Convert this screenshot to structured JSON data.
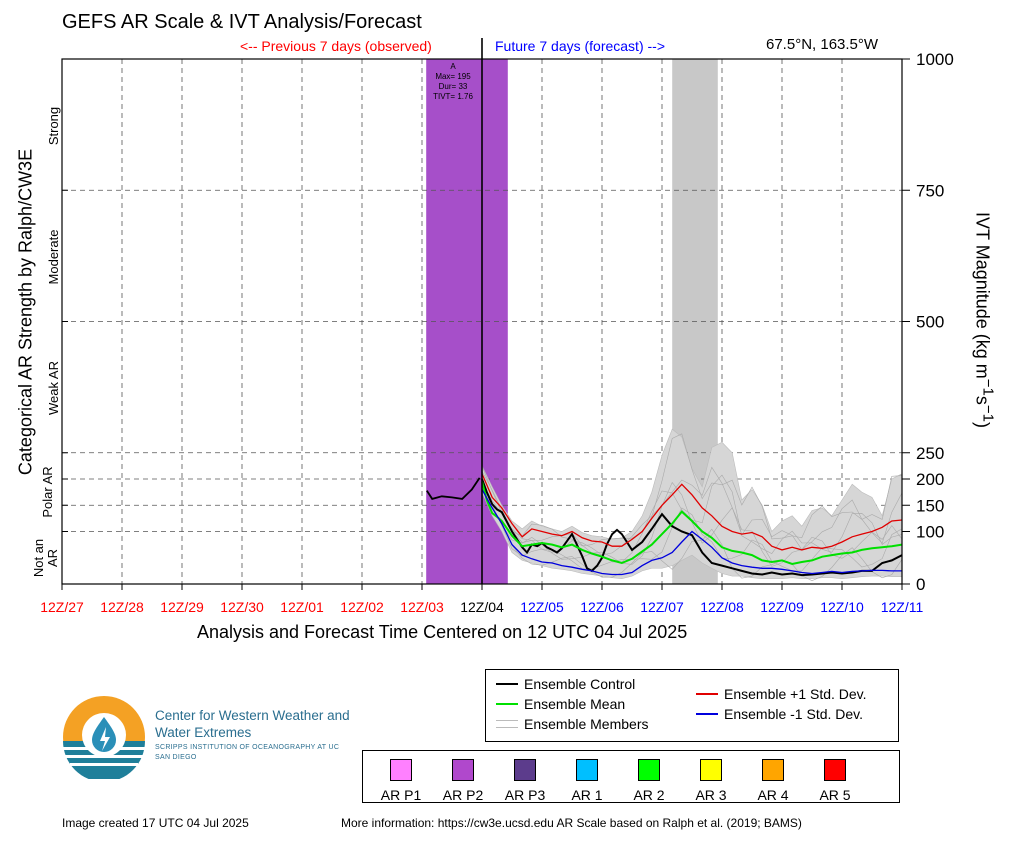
{
  "header": {
    "title": "GEFS AR Scale & IVT Analysis/Forecast",
    "previous_label": "<-- Previous 7 days (observed)",
    "future_label": "Future 7 days (forecast) -->",
    "location": "67.5°N, 163.5°W"
  },
  "axes": {
    "x_title": "Analysis and Forecast Time Centered on 12 UTC 04 Jul 2025",
    "left_title": "Categorical AR Strength by Ralph/CW3E",
    "right_title_main": "IVT Magnitude (kg m",
    "right_title_sup1": "−1",
    "right_title_mid": "s",
    "right_title_sup2": "−1",
    "right_title_end": ")",
    "categories": [
      "Not an AR",
      "Polar AR",
      "Weak AR",
      "Moderate",
      "Strong"
    ]
  },
  "colors": {
    "observed": "#ff0000",
    "forecast": "#0000ff",
    "control": "#000000",
    "mean": "#00e000",
    "plus_sd": "#e00000",
    "minus_sd": "#0000dd",
    "members": "#bbbbbb",
    "ar_p2_band": "#a64fc9",
    "grey_band": "#c8c8c8"
  },
  "chart_data": {
    "type": "line",
    "title": "GEFS AR Scale & IVT Analysis/Forecast",
    "xlabel": "Analysis and Forecast Time Centered on 12 UTC 04 Jul 2025",
    "ylabel": "IVT Magnitude (kg m-1 s-1)",
    "ylim": [
      0,
      1000
    ],
    "y_ticks": [
      0,
      100,
      150,
      200,
      250,
      500,
      750,
      1000
    ],
    "x_ticks": [
      {
        "label": "12Z/27",
        "period": "observed"
      },
      {
        "label": "12Z/28",
        "period": "observed"
      },
      {
        "label": "12Z/29",
        "period": "observed"
      },
      {
        "label": "12Z/30",
        "period": "observed"
      },
      {
        "label": "12Z/01",
        "period": "observed"
      },
      {
        "label": "12Z/02",
        "period": "observed"
      },
      {
        "label": "12Z/03",
        "period": "observed"
      },
      {
        "label": "12Z/04",
        "period": "analysis"
      },
      {
        "label": "12Z/05",
        "period": "forecast"
      },
      {
        "label": "12Z/06",
        "period": "forecast"
      },
      {
        "label": "12Z/07",
        "period": "forecast"
      },
      {
        "label": "12Z/08",
        "period": "forecast"
      },
      {
        "label": "12Z/09",
        "period": "forecast"
      },
      {
        "label": "12Z/10",
        "period": "forecast"
      },
      {
        "label": "12Z/11",
        "period": "forecast"
      }
    ],
    "x_unit": "days relative to 12Z/04",
    "xlim": [
      -7,
      7
    ],
    "observed": {
      "x": [
        -0.92,
        -0.83,
        -0.67,
        -0.5,
        -0.33,
        -0.17,
        -0.04
      ],
      "y": [
        178,
        162,
        167,
        165,
        162,
        180,
        202
      ]
    },
    "series": [
      {
        "name": "Ensemble Control",
        "x": [
          0,
          0.08,
          0.17,
          0.25,
          0.33,
          0.5,
          0.67,
          0.75,
          0.83,
          0.92,
          1.0,
          1.08,
          1.17,
          1.25,
          1.33,
          1.5,
          1.67,
          1.75,
          1.83,
          1.92,
          2.0,
          2.08,
          2.17,
          2.25,
          2.33,
          2.5,
          2.67,
          2.83,
          3.0,
          3.17,
          3.33,
          3.5,
          3.67,
          3.83,
          4.0,
          4.17,
          4.33,
          4.5,
          4.67,
          4.83,
          5.0,
          5.17,
          5.33,
          5.5,
          5.67,
          5.83,
          6.0,
          6.17,
          6.33,
          6.5,
          6.67,
          6.83,
          7.0
        ],
        "y": [
          200,
          175,
          152,
          142,
          137,
          100,
          70,
          60,
          75,
          72,
          78,
          70,
          65,
          60,
          68,
          95,
          53,
          30,
          25,
          35,
          50,
          75,
          95,
          103,
          95,
          65,
          80,
          105,
          133,
          110,
          100,
          93,
          60,
          40,
          35,
          30,
          25,
          20,
          18,
          22,
          18,
          20,
          17,
          18,
          20,
          22,
          20,
          22,
          25,
          25,
          40,
          45,
          55
        ]
      },
      {
        "name": "Ensemble Mean",
        "x": [
          0,
          0.08,
          0.17,
          0.25,
          0.33,
          0.5,
          0.67,
          0.83,
          1.0,
          1.17,
          1.33,
          1.5,
          1.67,
          1.83,
          2.0,
          2.17,
          2.33,
          2.5,
          2.67,
          2.83,
          3.0,
          3.17,
          3.33,
          3.5,
          3.67,
          3.83,
          4.0,
          4.17,
          4.33,
          4.5,
          4.67,
          4.83,
          5.0,
          5.17,
          5.33,
          5.5,
          5.67,
          5.83,
          6.0,
          6.17,
          6.33,
          6.5,
          6.67,
          6.83,
          7.0
        ],
        "y": [
          195,
          160,
          135,
          128,
          120,
          92,
          72,
          75,
          78,
          75,
          70,
          75,
          65,
          58,
          52,
          45,
          40,
          48,
          62,
          75,
          95,
          115,
          138,
          120,
          100,
          88,
          70,
          63,
          60,
          55,
          45,
          42,
          45,
          38,
          42,
          45,
          52,
          55,
          58,
          60,
          65,
          68,
          70,
          72,
          75
        ]
      },
      {
        "name": "Ensemble +1 Std. Dev.",
        "x": [
          0,
          0.17,
          0.33,
          0.5,
          0.67,
          0.83,
          1.0,
          1.17,
          1.33,
          1.5,
          1.67,
          1.83,
          2.0,
          2.17,
          2.33,
          2.5,
          2.67,
          2.83,
          3.0,
          3.17,
          3.33,
          3.5,
          3.67,
          3.83,
          4.0,
          4.17,
          4.33,
          4.5,
          4.67,
          4.83,
          5.0,
          5.17,
          5.33,
          5.5,
          5.67,
          5.83,
          6.0,
          6.17,
          6.33,
          6.5,
          6.67,
          6.83,
          7.0
        ],
        "y": [
          210,
          165,
          145,
          115,
          90,
          105,
          100,
          95,
          92,
          100,
          88,
          82,
          80,
          72,
          72,
          85,
          100,
          125,
          150,
          170,
          190,
          170,
          145,
          130,
          110,
          100,
          95,
          98,
          90,
          72,
          65,
          70,
          65,
          70,
          68,
          72,
          80,
          90,
          95,
          100,
          108,
          120,
          122
        ]
      },
      {
        "name": "Ensemble -1 Std. Dev.",
        "x": [
          0,
          0.17,
          0.33,
          0.5,
          0.67,
          0.83,
          1.0,
          1.17,
          1.33,
          1.5,
          1.67,
          1.83,
          2.0,
          2.17,
          2.33,
          2.5,
          2.67,
          2.83,
          3.0,
          3.17,
          3.33,
          3.5,
          3.67,
          3.83,
          4.0,
          4.17,
          4.33,
          4.5,
          4.67,
          4.83,
          5.0,
          5.17,
          5.33,
          5.5,
          5.67,
          5.83,
          6.0,
          6.17,
          6.33,
          6.5,
          6.67,
          6.83,
          7.0
        ],
        "y": [
          180,
          145,
          115,
          75,
          55,
          48,
          42,
          40,
          35,
          32,
          28,
          25,
          20,
          18,
          18,
          22,
          35,
          45,
          50,
          60,
          80,
          100,
          85,
          70,
          50,
          40,
          35,
          32,
          30,
          30,
          28,
          25,
          22,
          20,
          22,
          24,
          22,
          24,
          25,
          26,
          26,
          25,
          25
        ]
      }
    ],
    "members_envelope": {
      "x": [
        0,
        0.17,
        0.33,
        0.5,
        0.67,
        0.83,
        1.0,
        1.17,
        1.33,
        1.5,
        1.67,
        1.83,
        2.0,
        2.17,
        2.33,
        2.5,
        2.67,
        2.83,
        3.0,
        3.17,
        3.33,
        3.5,
        3.67,
        3.83,
        4.0,
        4.17,
        4.33,
        4.5,
        4.67,
        4.83,
        5.0,
        5.17,
        5.33,
        5.5,
        5.67,
        5.83,
        6.0,
        6.17,
        6.33,
        6.5,
        6.67,
        6.83,
        7.0
      ],
      "low": [
        175,
        130,
        100,
        60,
        45,
        40,
        35,
        30,
        28,
        25,
        20,
        18,
        15,
        12,
        10,
        15,
        25,
        30,
        30,
        35,
        45,
        55,
        40,
        30,
        20,
        15,
        15,
        12,
        10,
        10,
        10,
        12,
        10,
        10,
        12,
        12,
        10,
        12,
        14,
        15,
        15,
        14,
        14
      ],
      "high": [
        225,
        185,
        150,
        120,
        105,
        120,
        110,
        105,
        100,
        110,
        98,
        92,
        90,
        85,
        88,
        100,
        130,
        175,
        245,
        295,
        280,
        220,
        185,
        260,
        270,
        250,
        160,
        180,
        150,
        100,
        120,
        130,
        110,
        140,
        145,
        130,
        160,
        190,
        175,
        165,
        130,
        200,
        210
      ]
    },
    "bands": [
      {
        "name": "A",
        "category": "AR P2",
        "x_start": -0.93,
        "x_end": 0.43,
        "annotation": [
          "A",
          "Max= 195",
          "Dur= 33",
          "TIVT= 1.76"
        ]
      },
      {
        "name": "grey",
        "x_start": 3.17,
        "x_end": 3.93
      }
    ]
  },
  "legend_lines": {
    "control": "Ensemble Control",
    "mean": "Ensemble Mean",
    "members": "Ensemble Members",
    "plus": "Ensemble +1 Std. Dev.",
    "minus": "Ensemble -1 Std. Dev."
  },
  "legend_ar": [
    {
      "label": "AR P1",
      "color": "#ff80ff"
    },
    {
      "label": "AR P2",
      "color": "#b048cc"
    },
    {
      "label": "AR P3",
      "color": "#5c3c8c"
    },
    {
      "label": "AR 1",
      "color": "#00bfff"
    },
    {
      "label": "AR 2",
      "color": "#00ff00"
    },
    {
      "label": "AR 3",
      "color": "#ffff00"
    },
    {
      "label": "AR 4",
      "color": "#ffa500"
    },
    {
      "label": "AR 5",
      "color": "#ff0000"
    }
  ],
  "logo": {
    "name": "Center for Western Weather and Water Extremes",
    "sub": "SCRIPPS INSTITUTION OF OCEANOGRAPHY AT UC SAN DIEGO"
  },
  "footer": {
    "created": "Image created 17 UTC 04 Jul 2025",
    "info": "More information: https://cw3e.ucsd.edu AR Scale based on Ralph et al. (2019; BAMS)"
  }
}
